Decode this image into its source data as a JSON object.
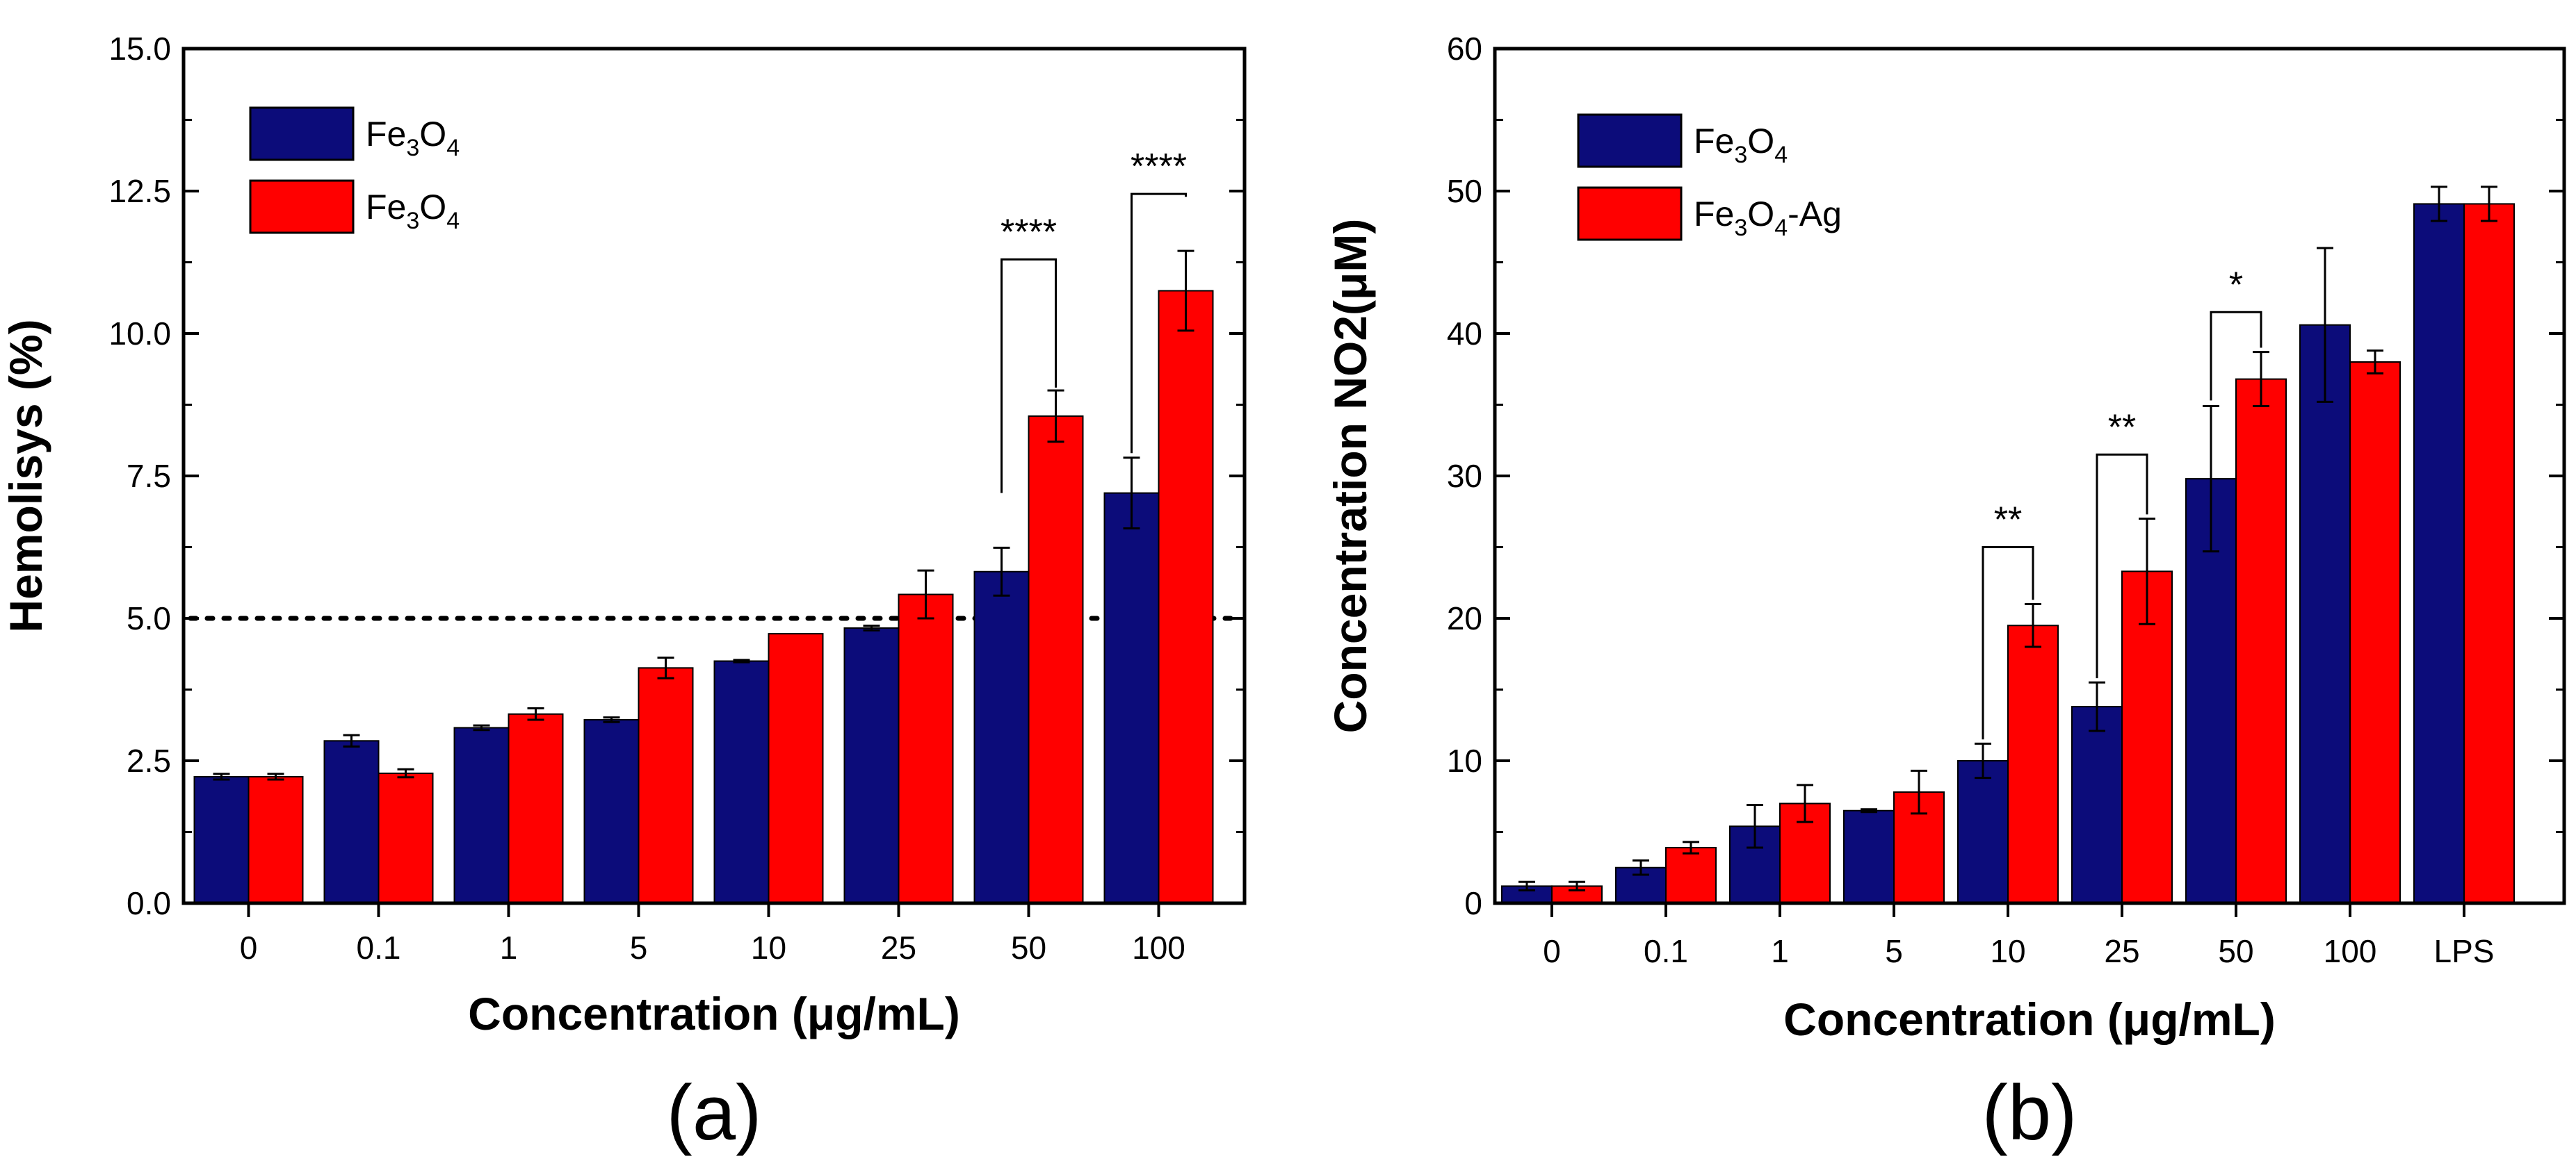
{
  "chart_data": [
    {
      "type": "bar",
      "panel_label": "(a)",
      "categories": [
        "0",
        "0.1",
        "1",
        "5",
        "10",
        "25",
        "50",
        "100"
      ],
      "series": [
        {
          "legend": {
            "base": "Fe",
            "sub1": "3",
            "mid": "O",
            "sub2": "4",
            "suffix": ""
          },
          "color": "#0c0c7a",
          "values": [
            2.22,
            2.85,
            3.08,
            3.22,
            4.25,
            4.83,
            5.82,
            7.2
          ],
          "errors": [
            0.05,
            0.1,
            0.04,
            0.04,
            0.02,
            0.04,
            0.42,
            0.62
          ]
        },
        {
          "legend": {
            "base": "Fe",
            "sub1": "3",
            "mid": "O",
            "sub2": "4",
            "suffix": ""
          },
          "color": "#ff0000",
          "values": [
            2.22,
            2.28,
            3.32,
            4.13,
            4.73,
            5.42,
            8.55,
            10.75
          ],
          "errors": [
            0.05,
            0.07,
            0.1,
            0.18,
            0.0,
            0.42,
            0.45,
            0.7
          ]
        }
      ],
      "ylabel": "Hemolisys (%)",
      "xlabel": "Concentration (μg/mL)",
      "ylim": [
        0,
        15
      ],
      "yticks": [
        "0.0",
        "2.5",
        "5.0",
        "7.5",
        "10.0",
        "12.5",
        "15.0"
      ],
      "threshold_line": {
        "value": 5.0,
        "style": "dotted"
      },
      "legend_position": "top-left",
      "significance": [
        {
          "category_index": 6,
          "label": "****",
          "y_blue": 7.2,
          "y_red": 9.05,
          "y_top": 11.3
        },
        {
          "category_index": 7,
          "label": "****",
          "y_blue": 7.9,
          "y_red": 12.4,
          "y_top": 12.45
        }
      ]
    },
    {
      "type": "bar",
      "panel_label": "(b)",
      "categories": [
        "0",
        "0.1",
        "1",
        "5",
        "10",
        "25",
        "50",
        "100",
        "LPS"
      ],
      "series": [
        {
          "legend": {
            "base": "Fe",
            "sub1": "3",
            "mid": "O",
            "sub2": "4",
            "suffix": ""
          },
          "color": "#0c0c7a",
          "values": [
            1.2,
            2.5,
            5.4,
            6.5,
            10.0,
            13.8,
            29.8,
            40.6,
            49.1
          ],
          "errors": [
            0.3,
            0.5,
            1.5,
            0.1,
            1.2,
            1.7,
            5.1,
            5.4,
            1.2
          ]
        },
        {
          "legend": {
            "base": "Fe",
            "sub1": "3",
            "mid": "O",
            "sub2": "4",
            "suffix": "-Ag"
          },
          "color": "#ff0000",
          "values": [
            1.2,
            3.9,
            7.0,
            7.8,
            19.5,
            23.3,
            36.8,
            38.0,
            49.1
          ],
          "errors": [
            0.3,
            0.4,
            1.3,
            1.5,
            1.5,
            3.7,
            1.9,
            0.8,
            1.2
          ]
        }
      ],
      "ylabel": "Concentration NO2(μM)",
      "xlabel": "Concentration (μg/mL)",
      "ylim": [
        0,
        60
      ],
      "yticks": [
        "0",
        "10",
        "20",
        "30",
        "40",
        "50",
        "60"
      ],
      "legend_position": "top-left",
      "significance": [
        {
          "category_index": 4,
          "label": "**",
          "y_blue": 11.5,
          "y_red": 21.3,
          "y_top": 25.0
        },
        {
          "category_index": 5,
          "label": "**",
          "y_blue": 15.8,
          "y_red": 27.3,
          "y_top": 31.5
        },
        {
          "category_index": 6,
          "label": "*",
          "y_blue": 35.3,
          "y_red": 39.0,
          "y_top": 41.5
        }
      ]
    }
  ]
}
